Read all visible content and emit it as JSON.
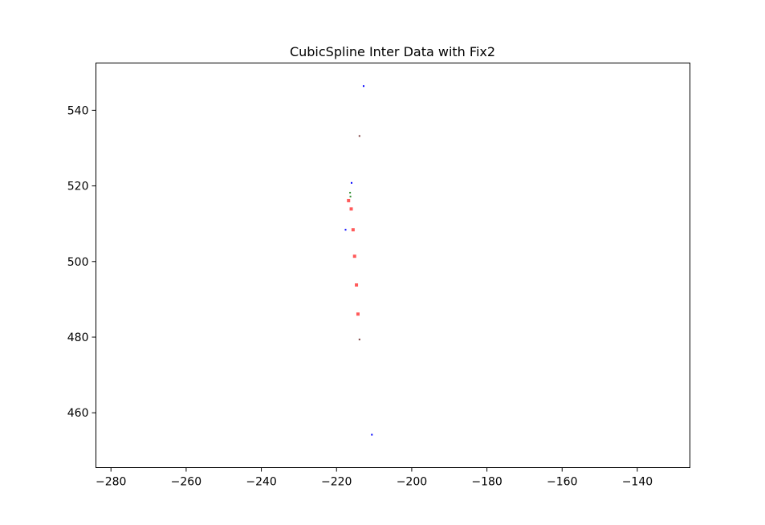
{
  "chart_data": {
    "type": "scatter",
    "title": "CubicSpline Inter Data with Fix2",
    "xlabel": "",
    "ylabel": "",
    "xlim": [
      -284,
      -126
    ],
    "ylim": [
      445.5,
      552.5
    ],
    "xticks": [
      -280,
      -260,
      -240,
      -220,
      -200,
      -180,
      -160,
      -140
    ],
    "yticks": [
      460,
      480,
      500,
      520,
      540
    ],
    "xtick_labels": [
      "−280",
      "−260",
      "−240",
      "−220",
      "−200",
      "−180",
      "−160",
      "−140"
    ],
    "ytick_labels": [
      "460",
      "480",
      "500",
      "520",
      "540"
    ],
    "grid": false,
    "legend": "none",
    "series": [
      {
        "color": "#0000ff",
        "marker_size": 2,
        "points": [
          {
            "x": -212.8,
            "y": 546.4
          },
          {
            "x": -216.0,
            "y": 520.8
          },
          {
            "x": -217.6,
            "y": 508.4
          },
          {
            "x": -210.6,
            "y": 454.2
          }
        ]
      },
      {
        "color": "#7a3a3a",
        "marker_size": 2,
        "points": [
          {
            "x": -213.9,
            "y": 533.2
          },
          {
            "x": -213.9,
            "y": 479.4
          }
        ]
      },
      {
        "color": "#2e8b2e",
        "marker_size": 2,
        "points": [
          {
            "x": -216.4,
            "y": 518.2
          },
          {
            "x": -216.3,
            "y": 517.2
          }
        ]
      },
      {
        "color": "#ff5a5a",
        "marker_size": 4,
        "points": [
          {
            "x": -216.8,
            "y": 516.1
          },
          {
            "x": -216.1,
            "y": 513.9
          },
          {
            "x": -215.6,
            "y": 508.4
          },
          {
            "x": -215.2,
            "y": 501.4
          },
          {
            "x": -214.7,
            "y": 493.8
          },
          {
            "x": -214.3,
            "y": 486.1
          }
        ]
      }
    ]
  }
}
